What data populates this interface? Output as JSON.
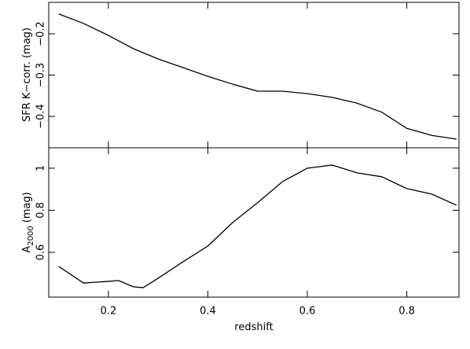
{
  "chart_data": [
    {
      "type": "line",
      "ylabel": "SFR K−corr. (mag)",
      "x": [
        0.1,
        0.15,
        0.2,
        0.25,
        0.3,
        0.35,
        0.4,
        0.45,
        0.5,
        0.55,
        0.6,
        0.65,
        0.7,
        0.75,
        0.8,
        0.85,
        0.9
      ],
      "series": [
        {
          "color": "#000000",
          "values": [
            -0.152,
            -0.175,
            -0.204,
            -0.236,
            -0.261,
            -0.282,
            -0.303,
            -0.322,
            -0.339,
            -0.339,
            -0.345,
            -0.354,
            -0.368,
            -0.39,
            -0.429,
            -0.446,
            -0.455
          ]
        }
      ],
      "xlim": [
        0.08,
        0.905
      ],
      "xticks": [
        0.2,
        0.4,
        0.6,
        0.8
      ],
      "ylim": [
        -0.476,
        -0.124
      ],
      "yticks": [
        {
          "value": -0.2,
          "label": "−0.2"
        },
        {
          "value": -0.3,
          "label": "−0.3"
        },
        {
          "value": -0.4,
          "label": "−0.4"
        }
      ]
    },
    {
      "type": "line",
      "ylabel": "A",
      "ylabel_sub": "2000",
      "ylabel_rest": "(mag)",
      "xlabel": "redshift",
      "x": [
        0.1,
        0.15,
        0.2,
        0.22,
        0.25,
        0.27,
        0.3,
        0.35,
        0.4,
        0.45,
        0.5,
        0.55,
        0.6,
        0.65,
        0.7,
        0.75,
        0.8,
        0.85,
        0.9
      ],
      "series": [
        {
          "color": "#000000",
          "values": [
            0.533,
            0.454,
            0.462,
            0.466,
            0.436,
            0.432,
            0.477,
            0.555,
            0.63,
            0.742,
            0.836,
            0.936,
            1.0,
            1.015,
            0.978,
            0.959,
            0.903,
            0.877,
            0.824
          ]
        }
      ],
      "xlim": [
        0.08,
        0.905
      ],
      "xticks": [
        0.2,
        0.4,
        0.6,
        0.8
      ],
      "ylim": [
        0.387,
        1.097
      ],
      "yticks": [
        0.6,
        0.8,
        1
      ]
    }
  ]
}
